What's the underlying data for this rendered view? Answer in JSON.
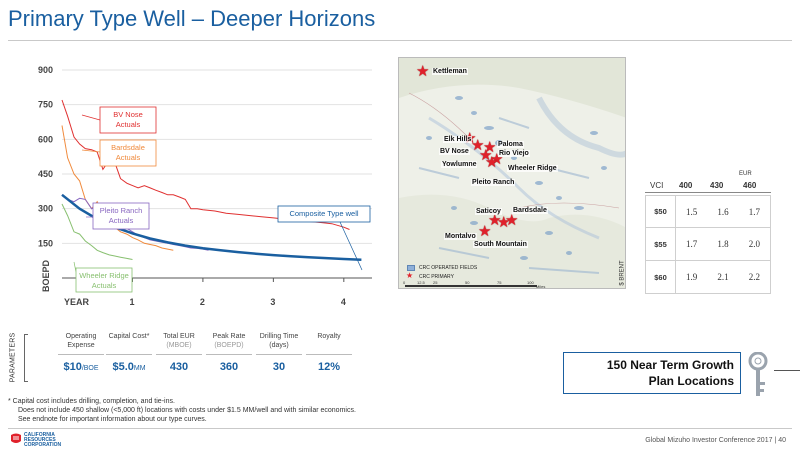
{
  "page": {
    "title": "Primary Type Well – Deeper Horizons",
    "footer": "Global Mizuho Investor Conference 2017 | 40",
    "company_line1": "CALIFORNIA",
    "company_line2": "RESOURCES",
    "company_line3": "CORPORATION",
    "accent_color": "#1a5fa0"
  },
  "chart_data": {
    "type": "line",
    "ylabel": "BOEPD",
    "xlabel": "YEAR",
    "x_ticks": [
      "1",
      "2",
      "3",
      "4"
    ],
    "y_ticks": [
      "150",
      "300",
      "450",
      "600",
      "750",
      "900"
    ],
    "ylim": [
      0,
      900
    ],
    "xlim": [
      0,
      4.4
    ],
    "series": [
      {
        "name": "BV Nose Actuals",
        "color": "#e03030",
        "x": [
          0,
          0.08,
          0.17,
          0.25,
          0.33,
          0.42,
          0.5,
          0.58,
          0.67,
          0.75,
          0.83,
          0.92,
          1.0,
          1.08,
          1.17,
          1.25,
          1.33,
          1.42,
          1.5,
          1.58,
          1.67,
          1.75,
          1.83,
          1.92,
          2.0,
          2.17,
          2.33,
          2.5,
          2.67,
          2.83,
          3.0,
          3.17,
          3.33,
          3.5,
          3.67,
          3.83,
          4.0,
          4.08
        ],
        "y": [
          770,
          700,
          610,
          580,
          560,
          555,
          545,
          470,
          510,
          500,
          430,
          410,
          400,
          390,
          400,
          390,
          380,
          370,
          360,
          360,
          350,
          340,
          300,
          300,
          295,
          290,
          280,
          275,
          270,
          265,
          260,
          255,
          250,
          245,
          240,
          235,
          220,
          210
        ]
      },
      {
        "name": "Bardsdale Actuals",
        "color": "#f08a3c",
        "x": [
          0,
          0.08,
          0.17,
          0.25,
          0.33,
          0.42,
          0.5,
          0.58,
          0.67,
          0.75,
          0.83,
          0.92,
          1.0,
          1.08,
          1.17,
          1.25,
          1.33,
          1.42,
          1.5,
          1.58
        ],
        "y": [
          660,
          520,
          450,
          420,
          340,
          300,
          330,
          280,
          240,
          220,
          200,
          190,
          175,
          165,
          150,
          145,
          140,
          130,
          125,
          120
        ]
      },
      {
        "name": "Pleito Ranch Actuals",
        "color": "#8866c0",
        "x": [
          0,
          0.08,
          0.17,
          0.25,
          0.33,
          0.42,
          0.5,
          0.58,
          0.67,
          0.75,
          0.83,
          0.92,
          1.0,
          1.08,
          1.17,
          1.25,
          1.33,
          1.42,
          1.5,
          1.58,
          1.67,
          1.75,
          1.83,
          1.92,
          2.0,
          2.08
        ],
        "y": [
          360,
          340,
          330,
          345,
          340,
          300,
          310,
          280,
          250,
          240,
          230,
          215,
          200,
          185,
          175,
          165,
          160,
          155,
          150,
          145,
          140,
          135,
          130,
          128,
          125,
          120
        ]
      },
      {
        "name": "Wheeler Ridge Actuals",
        "color": "#88c070",
        "x": [
          0,
          0.08,
          0.17,
          0.25,
          0.33,
          0.42,
          0.5,
          0.58,
          0.67,
          0.75,
          0.83,
          0.92,
          1.0
        ],
        "y": [
          320,
          270,
          200,
          190,
          160,
          140,
          120,
          110,
          100,
          95,
          90,
          85,
          80
        ]
      },
      {
        "name": "Composite Type well",
        "color": "#1a5fa0",
        "x": [
          0,
          0.25,
          0.5,
          0.75,
          1.0,
          1.25,
          1.5,
          1.75,
          2.0,
          2.25,
          2.5,
          2.75,
          3.0,
          3.25,
          3.5,
          3.75,
          4.0,
          4.25
        ],
        "y": [
          360,
          300,
          255,
          220,
          193,
          171,
          154,
          140,
          129,
          120,
          112,
          105,
          99,
          94,
          90,
          86,
          82,
          79
        ]
      }
    ],
    "labels": {
      "bv_nose": "BV Nose Actuals",
      "bardsdale": "Bardsdale Actuals",
      "pleito": "Pleito Ranch Actuals",
      "wheeler": "Wheeler Ridge Actuals",
      "composite": "Composite Type well"
    }
  },
  "parameters": {
    "label": "PARAMETERS",
    "items": [
      {
        "label": "Operating Expense",
        "sub": "",
        "value": "$10",
        "unit": "/BOE"
      },
      {
        "label": "Capital Cost*",
        "sub": "",
        "value": "$5.0",
        "unit": "MM"
      },
      {
        "label": "Total EUR",
        "sub": "(MBOE)",
        "value": "430",
        "unit": ""
      },
      {
        "label": "Peak Rate",
        "sub": "(BOEPD)",
        "value": "360",
        "unit": ""
      },
      {
        "label": "Drilling Time (days)",
        "sub": "",
        "value": "30",
        "unit": ""
      },
      {
        "label": "Royalty",
        "sub": "",
        "value": "12%",
        "unit": ""
      }
    ]
  },
  "footnotes": [
    "* Capital cost includes drilling, completion, and tie-ins.",
    "Does not include 450 shallow (<5,000 ft) locations with costs under $1.5 MM/well and with similar economics.",
    "See endnote for important information about our type curves."
  ],
  "map": {
    "places": [
      "Kettleman",
      "Elk Hills",
      "BV Nose",
      "Paloma",
      "Rio Viejo",
      "Yowlumne",
      "Wheeler Ridge",
      "Pleito Ranch",
      "Saticoy",
      "Bardsdale",
      "Montalvo",
      "South Mountain"
    ],
    "legend_fields": "CRC OPERATED FIELDS",
    "legend_primary": "CRC PRIMARY",
    "scale": [
      "0",
      "12.5",
      "25",
      "50",
      "75",
      "100"
    ],
    "scale_unit": "Miles"
  },
  "table": {
    "eur_label": "EUR",
    "vci_label": "VCI",
    "columns": [
      "400",
      "430",
      "460"
    ],
    "axis_label": "$ BRENT",
    "rows": [
      {
        "header": "$50",
        "values": [
          "1.5",
          "1.6",
          "1.7"
        ]
      },
      {
        "header": "$55",
        "values": [
          "1.7",
          "1.8",
          "2.0"
        ]
      },
      {
        "header": "$60",
        "values": [
          "1.9",
          "2.1",
          "2.2"
        ]
      }
    ]
  },
  "callout": {
    "line1": "150 Near Term Growth",
    "line2": "Plan Locations"
  }
}
